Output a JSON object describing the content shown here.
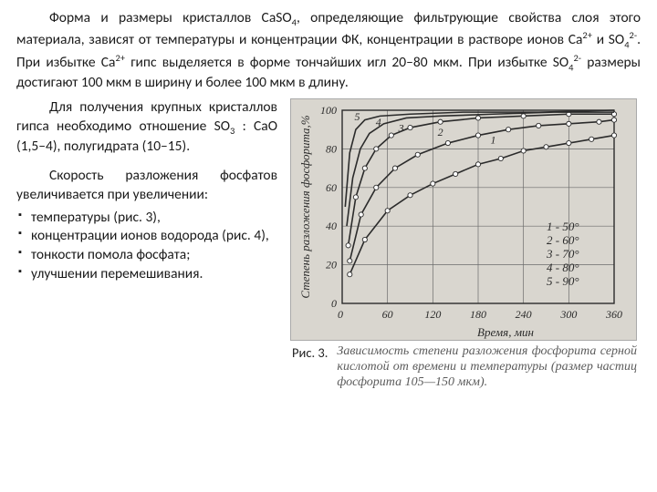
{
  "para1_parts": {
    "a": "Форма и размеры кристаллов CaSO",
    "b": ", определяющие фильтрующие свойства слоя этого материала, зависят от температуры и концентрации ФК, концентрации в растворе ионов Ca",
    "c": " и SO",
    "d": ". При избытке Ca",
    "e": " гипс выделяется в форме тончайших игл 20–80 мкм. При избытке SO",
    "f": " размеры достигают  100 мкм в ширину  и более 100 мкм в длину."
  },
  "sup2plus": "2+",
  "sup2minus": "2-",
  "sub4": "4",
  "para2_parts": {
    "a": "Для получения крупных кристаллов гипса необходимо отношение SO",
    "b": " : CaO (1,5–4), полугидрата (10–15)."
  },
  "sub3": "3",
  "para3": "Скорость разложения фосфатов увеличивается при увеличении:",
  "bullets": [
    "температуры (рис. 3),",
    "концентрации ионов водорода (рис. 4),",
    " тонкости помола фосфата;",
    " улучшении перемешивания."
  ],
  "ris_label": "Рис. 3.",
  "caption": "Зависимость степени разложения фосфорита серной кислотой от времени и температуры (размер частиц фосфорита 105—150 мкм).",
  "chart": {
    "bg": "#d9d6cf",
    "grid_color": "#6b6b6b",
    "axis_color": "#2b2b2b",
    "curve_color": "#2b2b2b",
    "marker_color": "#ffffff",
    "marker_stroke": "#2b2b2b",
    "text_color": "#2b2b2b",
    "y_label": "Степень разложения фосфорита,%",
    "y_label_fontsize": 13,
    "x_label": "Время, мин",
    "x_label_fontsize": 13,
    "tick_fontsize": 12,
    "xlim": [
      0,
      360
    ],
    "ylim": [
      0,
      100
    ],
    "x_ticks": [
      0,
      60,
      120,
      180,
      240,
      300,
      360
    ],
    "y_ticks": [
      0,
      20,
      40,
      60,
      80,
      100
    ],
    "legend": [
      {
        "key": "1",
        "label": "50°",
        "style": "italic"
      },
      {
        "key": "2",
        "label": "60°",
        "style": "italic"
      },
      {
        "key": "3",
        "label": "70°",
        "style": "italic"
      },
      {
        "key": "4",
        "label": "80°",
        "style": "italic"
      },
      {
        "key": "5",
        "label": "90°",
        "style": "italic"
      }
    ],
    "series": [
      {
        "id": "1",
        "label_pos": [
          200,
          81
        ],
        "points": [
          [
            10,
            15
          ],
          [
            30,
            33
          ],
          [
            60,
            48
          ],
          [
            90,
            56
          ],
          [
            120,
            62
          ],
          [
            150,
            67
          ],
          [
            180,
            72
          ],
          [
            210,
            75
          ],
          [
            240,
            79
          ],
          [
            270,
            81
          ],
          [
            300,
            83
          ],
          [
            330,
            85
          ],
          [
            360,
            87
          ]
        ]
      },
      {
        "id": "2",
        "label_pos": [
          130,
          85
        ],
        "points": [
          [
            10,
            22
          ],
          [
            25,
            46
          ],
          [
            45,
            60
          ],
          [
            70,
            70
          ],
          [
            100,
            77
          ],
          [
            140,
            83
          ],
          [
            180,
            87
          ],
          [
            220,
            90
          ],
          [
            260,
            92
          ],
          [
            300,
            93
          ],
          [
            340,
            94
          ],
          [
            360,
            95
          ]
        ]
      },
      {
        "id": "3",
        "label_pos": [
          78,
          87
        ],
        "points": [
          [
            8,
            30
          ],
          [
            18,
            55
          ],
          [
            30,
            70
          ],
          [
            45,
            80
          ],
          [
            65,
            87
          ],
          [
            90,
            91
          ],
          [
            130,
            94
          ],
          [
            180,
            96
          ],
          [
            240,
            97
          ],
          [
            300,
            98
          ],
          [
            360,
            98
          ]
        ]
      },
      {
        "id": "4",
        "label_pos": [
          48,
          90
        ],
        "points": [
          [
            6,
            40
          ],
          [
            14,
            65
          ],
          [
            24,
            80
          ],
          [
            36,
            88
          ],
          [
            55,
            93
          ],
          [
            85,
            96
          ],
          [
            130,
            97
          ],
          [
            200,
            98
          ],
          [
            280,
            99
          ],
          [
            360,
            99
          ]
        ]
      },
      {
        "id": "5",
        "label_pos": [
          20,
          93
        ],
        "points": [
          [
            4,
            50
          ],
          [
            10,
            78
          ],
          [
            18,
            90
          ],
          [
            30,
            95
          ],
          [
            50,
            97
          ],
          [
            90,
            98
          ],
          [
            160,
            99
          ],
          [
            260,
            99
          ],
          [
            360,
            100
          ]
        ]
      }
    ]
  }
}
